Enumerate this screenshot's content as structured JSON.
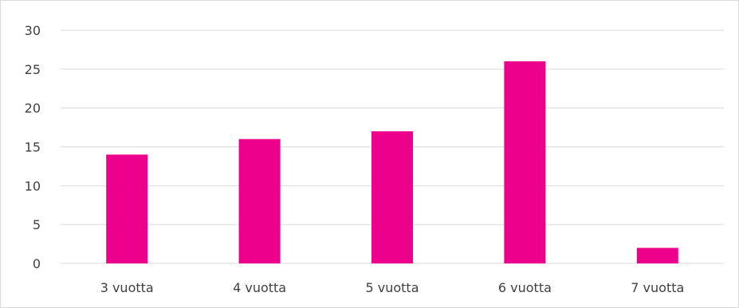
{
  "chart_data": {
    "type": "bar",
    "categories": [
      "3 vuotta",
      "4 vuotta",
      "5 vuotta",
      "6 vuotta",
      "7 vuotta"
    ],
    "values": [
      14,
      16,
      17,
      26,
      2
    ],
    "title": "",
    "xlabel": "",
    "ylabel": "",
    "ylim": [
      0,
      30
    ],
    "yticks": [
      "0",
      "5",
      "10",
      "15",
      "20",
      "25",
      "30"
    ],
    "grid": true,
    "legend": "none",
    "colors": {
      "bar": "#ec008c",
      "grid": "#d9d9d9",
      "text": "#404040"
    }
  }
}
